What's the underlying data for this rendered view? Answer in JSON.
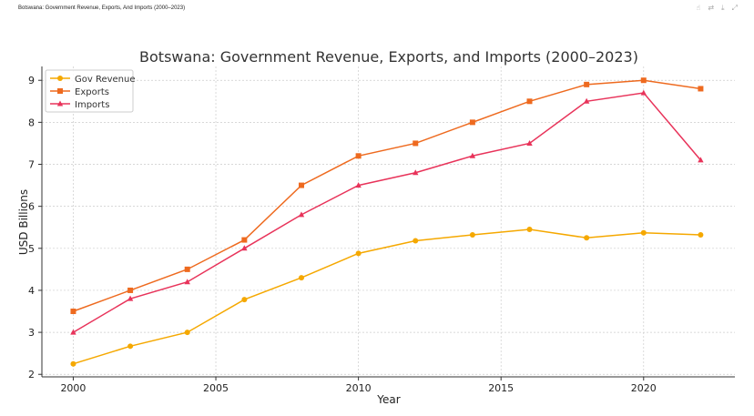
{
  "header": {
    "title": "Botswana: Government Revenue, Exports, And Imports (2000–2023)",
    "icons": [
      "pointer-icon",
      "swap-icon",
      "download-icon",
      "expand-icon"
    ]
  },
  "chart_data": {
    "type": "line",
    "title": "Botswana: Government Revenue, Exports, and Imports (2000–2023)",
    "xlabel": "Year",
    "ylabel": "USD Billions",
    "xlim": [
      1998.9,
      2023.2
    ],
    "ylim": [
      1.94,
      9.33
    ],
    "xticks": [
      2000,
      2005,
      2010,
      2015,
      2020
    ],
    "yticks": [
      2,
      3,
      4,
      5,
      6,
      7,
      8,
      9
    ],
    "grid": true,
    "legend": "top-left",
    "x": [
      2000,
      2002,
      2004,
      2006,
      2008,
      2010,
      2012,
      2014,
      2016,
      2018,
      2020,
      2022
    ],
    "series": [
      {
        "name": "Gov Revenue",
        "color": "#f5a800",
        "marker": "circle",
        "values": [
          2.25,
          2.67,
          3.0,
          3.78,
          4.3,
          4.88,
          5.18,
          5.32,
          5.45,
          5.25,
          5.37,
          5.32
        ]
      },
      {
        "name": "Exports",
        "color": "#ee6a1f",
        "marker": "square",
        "values": [
          3.5,
          4.0,
          4.5,
          5.2,
          6.5,
          7.2,
          7.5,
          8.0,
          8.5,
          8.9,
          9.0,
          8.8
        ]
      },
      {
        "name": "Imports",
        "color": "#e8335a",
        "marker": "triangle",
        "values": [
          3.0,
          3.8,
          4.2,
          5.0,
          5.8,
          6.5,
          6.8,
          7.2,
          7.5,
          8.5,
          8.7,
          7.1
        ]
      }
    ]
  }
}
